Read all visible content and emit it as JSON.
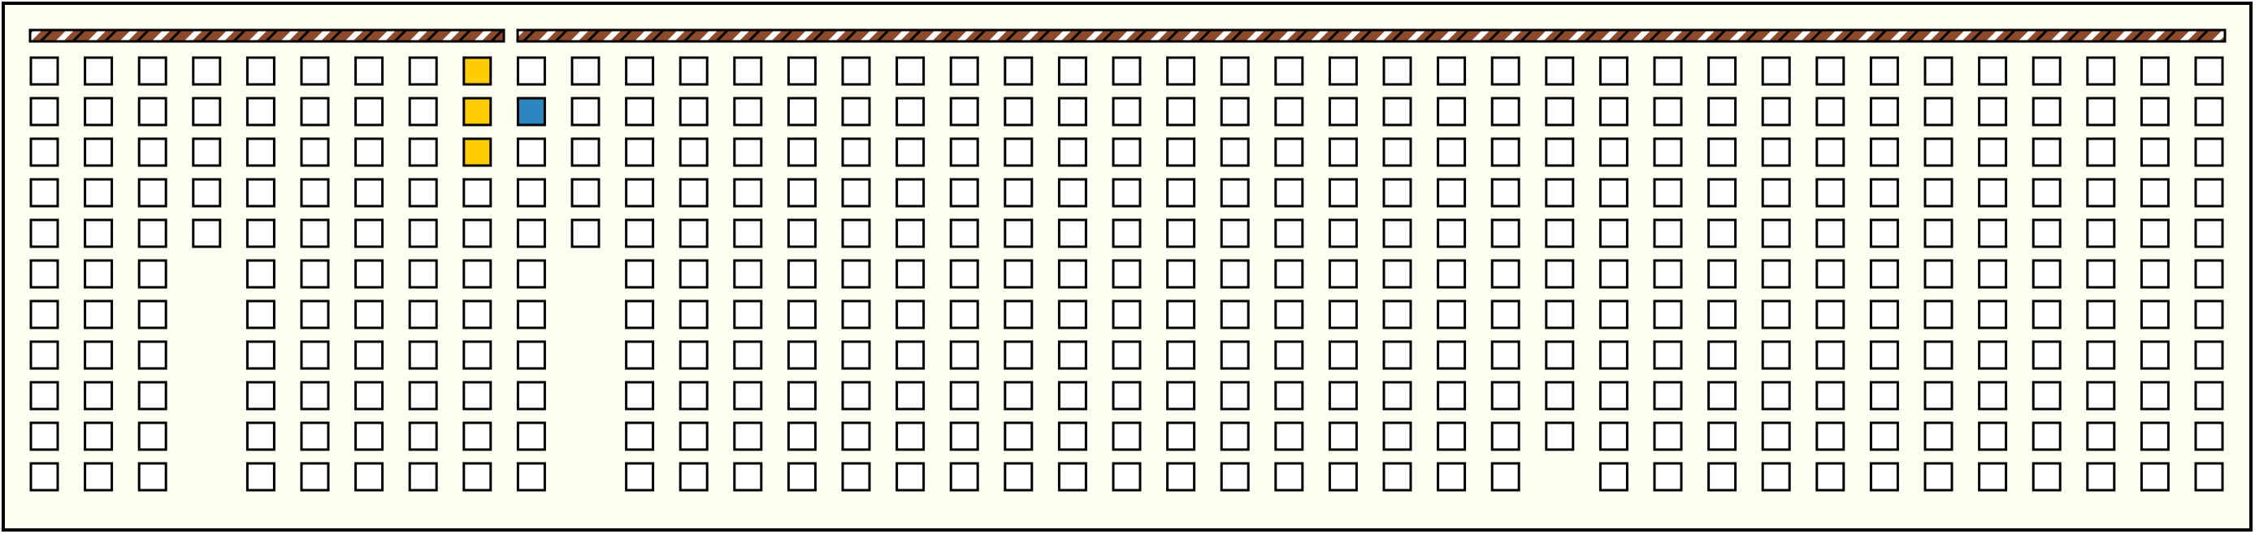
{
  "grid": {
    "columns": [
      11,
      11,
      11,
      5,
      11,
      11,
      11,
      11,
      11,
      11,
      5,
      11,
      11,
      11,
      11,
      11,
      11,
      11,
      11,
      11,
      11,
      11,
      11,
      11,
      11,
      11,
      11,
      11,
      10,
      11,
      11,
      11,
      11,
      11,
      11,
      11,
      11,
      11,
      11,
      11,
      11
    ],
    "highlights": [
      {
        "column": 8,
        "row": 0,
        "color": "#ffcc00"
      },
      {
        "column": 8,
        "row": 1,
        "color": "#ffcc00"
      },
      {
        "column": 8,
        "row": 2,
        "color": "#ffcc00"
      },
      {
        "column": 9,
        "row": 1,
        "color": "#2e86c1"
      }
    ]
  }
}
